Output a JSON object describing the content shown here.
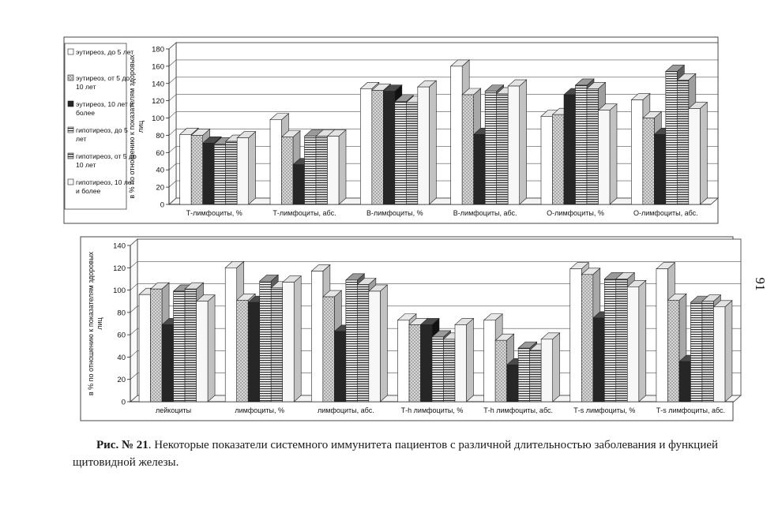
{
  "caption": {
    "label": "Рис. № 21",
    "text": ". Некоторые показатели системного иммунитета пациентов с различной длительностью заболевания и функцией щитовидной железы."
  },
  "page_number": "91",
  "chart_data": [
    {
      "type": "bar",
      "title": "",
      "xlabel": "",
      "ylabel": "в % по отношению к показателям здоровых лиц",
      "ylim": [
        0,
        180
      ],
      "yticks": [
        0,
        20,
        40,
        60,
        80,
        100,
        120,
        140,
        160,
        180
      ],
      "grid": true,
      "legend": "left",
      "categories": [
        "Т-лимфоциты, %",
        "Т-лимфоциты, абс.",
        "В-лимфоциты, %",
        "В-лимфоциты, абс.",
        "О-лимфоциты, %",
        "О-лимфоциты, абс."
      ],
      "series": [
        {
          "name": "эутиреоз, до 5 лет",
          "values": [
            81,
            98,
            134,
            160,
            102,
            121
          ]
        },
        {
          "name": "эутиреоз, от 5 до 10 лет",
          "values": [
            80,
            78,
            132,
            127,
            104,
            100
          ]
        },
        {
          "name": "эутиреоз, 10 лет и более",
          "values": [
            71,
            46,
            131,
            81,
            127,
            81
          ]
        },
        {
          "name": "гипотиреоз, до 5 лет",
          "values": [
            70,
            79,
            119,
            131,
            138,
            154
          ]
        },
        {
          "name": "гипотиреоз, от 5 до 10 лет",
          "values": [
            73,
            79,
            118,
            128,
            134,
            144
          ]
        },
        {
          "name": "гипотиреоз, 10 лет и более",
          "values": [
            77,
            79,
            136,
            137,
            109,
            111
          ]
        }
      ]
    },
    {
      "type": "bar",
      "title": "",
      "xlabel": "",
      "ylabel": "в % по отношению к показателям здоровых лиц",
      "ylim": [
        0,
        140
      ],
      "yticks": [
        0,
        20,
        40,
        60,
        80,
        100,
        120,
        140
      ],
      "grid": true,
      "legend": "none",
      "categories": [
        "лейкоциты",
        "лимфоциты, %",
        "лимфоциты, абс.",
        "Т-h лимфоциты, %",
        "Т-h лимфоциты, абс.",
        "Т-s лимфоциты, %",
        "Т-s лимфоциты, абс."
      ],
      "series": [
        {
          "name": "эутиреоз, до 5 лет",
          "values": [
            96,
            120,
            117,
            73,
            73,
            119,
            119
          ]
        },
        {
          "name": "эутиреоз, от 5 до 10 лет",
          "values": [
            101,
            91,
            94,
            69,
            55,
            114,
            91
          ]
        },
        {
          "name": "эутиреоз, 10 лет и более",
          "values": [
            69,
            89,
            63,
            69,
            33,
            75,
            36
          ]
        },
        {
          "name": "гипотиреоз, до 5 лет",
          "values": [
            99,
            108,
            109,
            58,
            48,
            110,
            89
          ]
        },
        {
          "name": "гипотиреоз, от 5 до 10 лет",
          "values": [
            101,
            102,
            105,
            56,
            46,
            110,
            90
          ]
        },
        {
          "name": "гипотиреоз, 10 лет и более",
          "values": [
            90,
            107,
            99,
            69,
            56,
            103,
            85
          ]
        }
      ]
    }
  ]
}
